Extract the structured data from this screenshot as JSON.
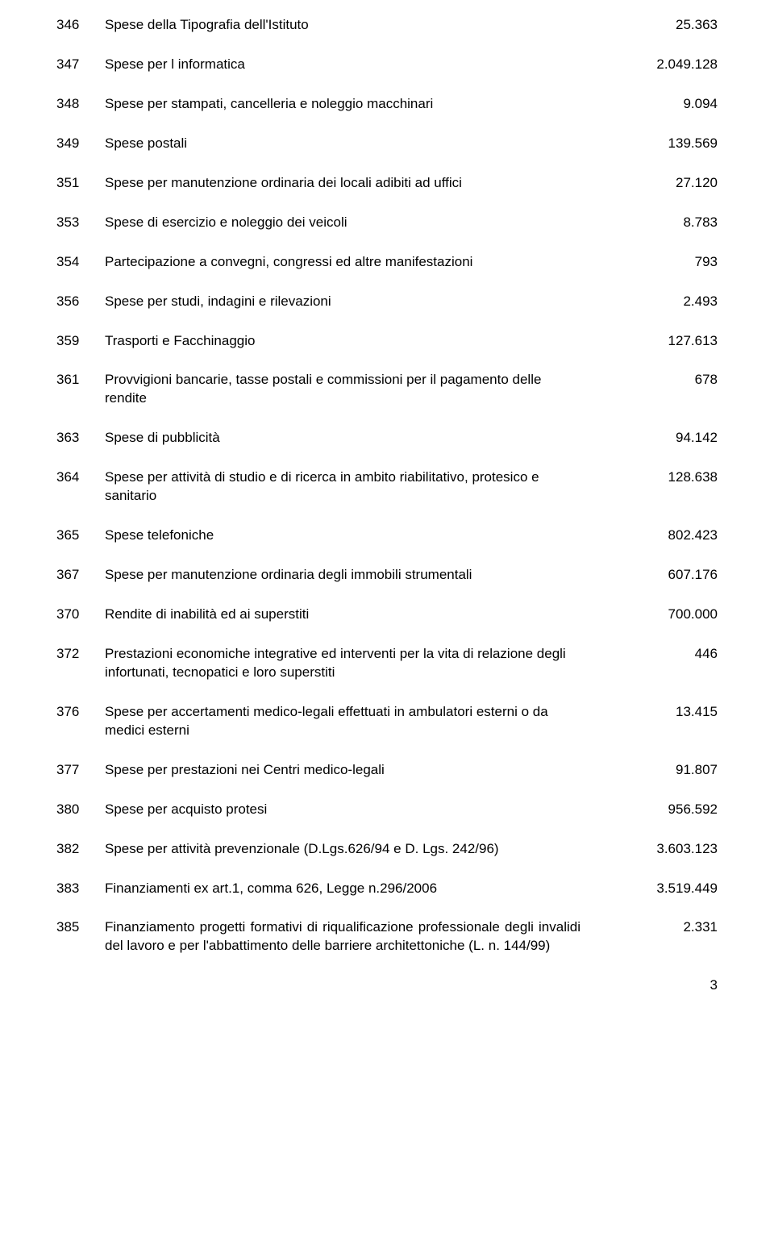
{
  "items": [
    {
      "code": "346",
      "desc": "Spese della Tipografia dell'Istituto",
      "amount": "25.363",
      "justify": false
    },
    {
      "code": "347",
      "desc": "Spese per l informatica",
      "amount": "2.049.128",
      "justify": false
    },
    {
      "code": "348",
      "desc": "Spese per stampati, cancelleria e noleggio macchinari",
      "amount": "9.094",
      "justify": false
    },
    {
      "code": "349",
      "desc": "Spese postali",
      "amount": "139.569",
      "justify": false
    },
    {
      "code": "351",
      "desc": "Spese per manutenzione ordinaria dei locali adibiti ad uffici",
      "amount": "27.120",
      "justify": false
    },
    {
      "code": "353",
      "desc": "Spese di esercizio e noleggio dei veicoli",
      "amount": "8.783",
      "justify": false
    },
    {
      "code": "354",
      "desc": "Partecipazione a convegni, congressi ed altre manifestazioni",
      "amount": "793",
      "justify": false
    },
    {
      "code": "356",
      "desc": "Spese per studi, indagini e rilevazioni",
      "amount": "2.493",
      "justify": false
    },
    {
      "code": "359",
      "desc": "Trasporti e Facchinaggio",
      "amount": "127.613",
      "justify": false
    },
    {
      "code": "361",
      "desc": "Provvigioni bancarie, tasse postali e commissioni per il pagamento delle rendite",
      "amount": "678",
      "justify": false
    },
    {
      "code": "363",
      "desc": "Spese di pubblicità",
      "amount": "94.142",
      "justify": false
    },
    {
      "code": "364",
      "desc": "Spese per attività di studio e di ricerca in ambito riabilitativo, protesico e sanitario",
      "amount": "128.638",
      "justify": false
    },
    {
      "code": "365",
      "desc": "Spese telefoniche",
      "amount": "802.423",
      "justify": false
    },
    {
      "code": "367",
      "desc": "Spese per manutenzione ordinaria degli immobili strumentali",
      "amount": "607.176",
      "justify": false
    },
    {
      "code": "370",
      "desc": "Rendite di inabilità ed ai superstiti",
      "amount": "700.000",
      "justify": false
    },
    {
      "code": "372",
      "desc": "Prestazioni economiche integrative ed interventi per la vita di relazione degli infortunati, tecnopatici e loro superstiti",
      "amount": "446",
      "justify": false
    },
    {
      "code": "376",
      "desc": "Spese per accertamenti medico-legali effettuati in ambulatori esterni o da medici esterni",
      "amount": "13.415",
      "justify": false
    },
    {
      "code": "377",
      "desc": "Spese per prestazioni nei Centri medico-legali",
      "amount": "91.807",
      "justify": false
    },
    {
      "code": "380",
      "desc": "Spese per acquisto protesi",
      "amount": "956.592",
      "justify": false
    },
    {
      "code": "382",
      "desc": "Spese per attività prevenzionale (D.Lgs.626/94 e D. Lgs. 242/96)",
      "amount": "3.603.123",
      "justify": false
    },
    {
      "code": "383",
      "desc": "Finanziamenti ex art.1, comma 626, Legge n.296/2006",
      "amount": "3.519.449",
      "justify": false
    },
    {
      "code": "385",
      "desc": "Finanziamento progetti formativi di riqualificazione professionale degli invalidi del lavoro e per l'abbattimento delle barriere architettoniche (L. n. 144/99)",
      "amount": "2.331",
      "justify": true
    }
  ],
  "pageNumber": "3"
}
